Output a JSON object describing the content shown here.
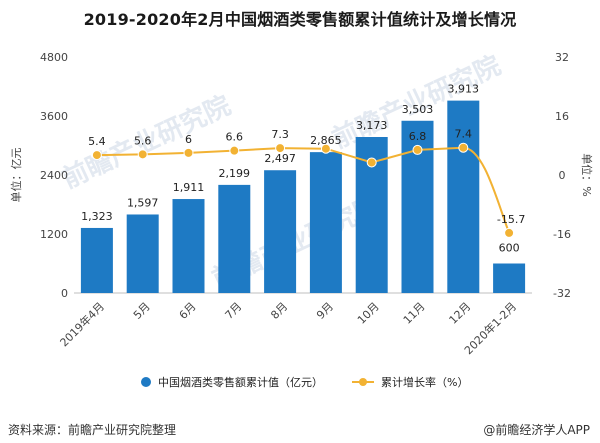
{
  "chart_data": {
    "type": "bar",
    "title": "2019-2020年2月中国烟酒类零售额累计值统计及增长情况",
    "categories": [
      "2019年4月",
      "5月",
      "6月",
      "7月",
      "8月",
      "9月",
      "10月",
      "11月",
      "12月",
      "2020年1-2月"
    ],
    "series": [
      {
        "name": "中国烟酒类零售额累计值（亿元）",
        "type": "bar",
        "axis": "left",
        "color": "#1e7ac4",
        "values": [
          1323,
          1597,
          1911,
          2199,
          2497,
          2865,
          3173,
          3503,
          3913,
          600
        ],
        "labels": [
          "1,323",
          "1,597",
          "1,911",
          "2,199",
          "2,497",
          "2,865",
          "3,173",
          "3,503",
          "3,913",
          "600"
        ]
      },
      {
        "name": "累计增长率（%）",
        "type": "line",
        "axis": "right",
        "color": "#f2b233",
        "values": [
          5.4,
          5.6,
          6,
          6.6,
          7.3,
          null,
          null,
          6.8,
          7.4,
          -15.7
        ],
        "labels": [
          "5.4",
          "5.6",
          "6",
          "6.6",
          "7.3",
          "",
          "",
          "6.8",
          "7.4",
          "-15.7"
        ]
      }
    ],
    "y_left": {
      "label": "单位：亿元",
      "ylim": [
        0,
        4800
      ],
      "ticks": [
        0,
        1200,
        2400,
        3600,
        4800
      ],
      "tick_labels": [
        "0",
        "1200",
        "2400",
        "3600",
        "4800"
      ]
    },
    "y_right": {
      "label": "单位：%",
      "ylim": [
        -32,
        32
      ],
      "ticks": [
        -32,
        -16,
        0,
        16,
        32
      ],
      "tick_labels": [
        "-32",
        "-16",
        "0",
        "16",
        "32"
      ]
    },
    "legend_position": "bottom",
    "grid": false
  },
  "source_text": "资料来源：前瞻产业研究院整理",
  "brand_text": "@前瞻经济学人APP",
  "watermark_text": "前瞻产业研究院"
}
